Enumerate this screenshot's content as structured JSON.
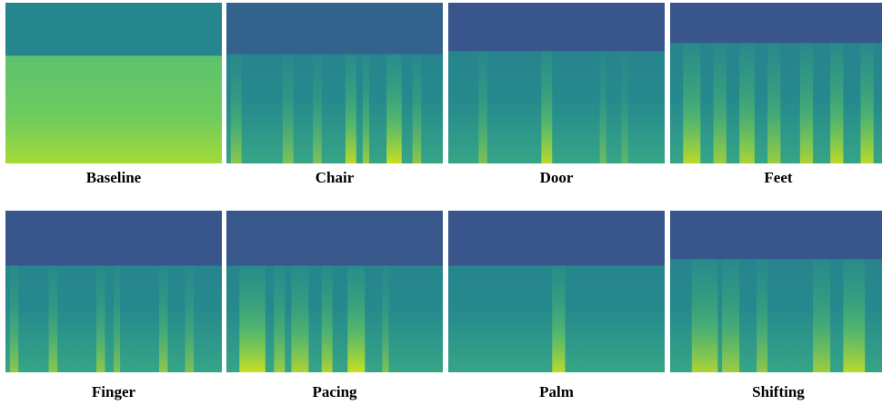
{
  "panels": [
    {
      "label": "Baseline"
    },
    {
      "label": "Chair"
    },
    {
      "label": "Door"
    },
    {
      "label": "Feet"
    },
    {
      "label": "Finger"
    },
    {
      "label": "Pacing"
    },
    {
      "label": "Palm"
    },
    {
      "label": "Shifting"
    }
  ]
}
